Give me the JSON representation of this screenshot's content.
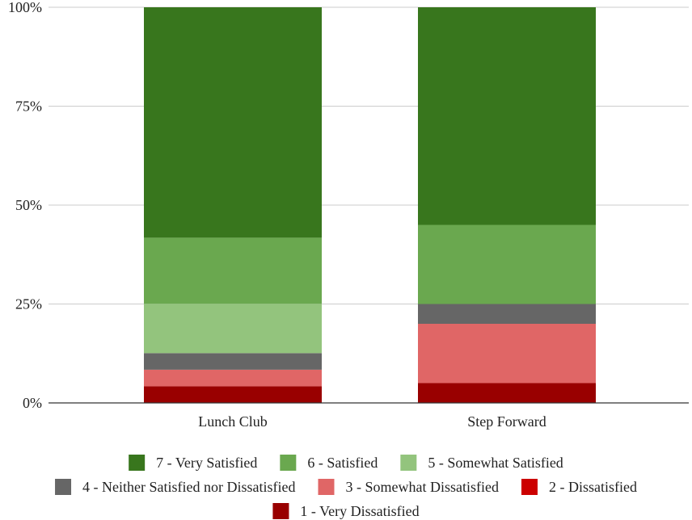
{
  "chart_data": {
    "type": "bar",
    "stacked": true,
    "percent_stacked": true,
    "categories": [
      "Lunch Club",
      "Step Forward"
    ],
    "y_ticks": [
      "0%",
      "25%",
      "50%",
      "75%",
      "100%"
    ],
    "ylim": [
      0,
      100
    ],
    "grid": true,
    "legend_position": "bottom",
    "series": [
      {
        "name": "1 - Very Dissatisfied",
        "color": "#990000",
        "values": [
          4.2,
          5
        ]
      },
      {
        "name": "2 - Dissatisfied",
        "color": "#cc0000",
        "values": [
          0,
          0
        ]
      },
      {
        "name": "3 - Somewhat Dissatisfied",
        "color": "#e06666",
        "values": [
          4.2,
          15
        ]
      },
      {
        "name": "4 - Neither Satisfied nor Dissatisfied",
        "color": "#666666",
        "values": [
          4.2,
          5
        ]
      },
      {
        "name": "5 - Somewhat Satisfied",
        "color": "#93c47d",
        "values": [
          12.5,
          0
        ]
      },
      {
        "name": "6 - Satisfied",
        "color": "#6aa84f",
        "values": [
          16.7,
          20
        ]
      },
      {
        "name": "7 - Very Satisfied",
        "color": "#38761d",
        "values": [
          58.3,
          55
        ]
      }
    ],
    "legend_order": [
      6,
      5,
      4,
      3,
      2,
      1,
      0
    ]
  }
}
